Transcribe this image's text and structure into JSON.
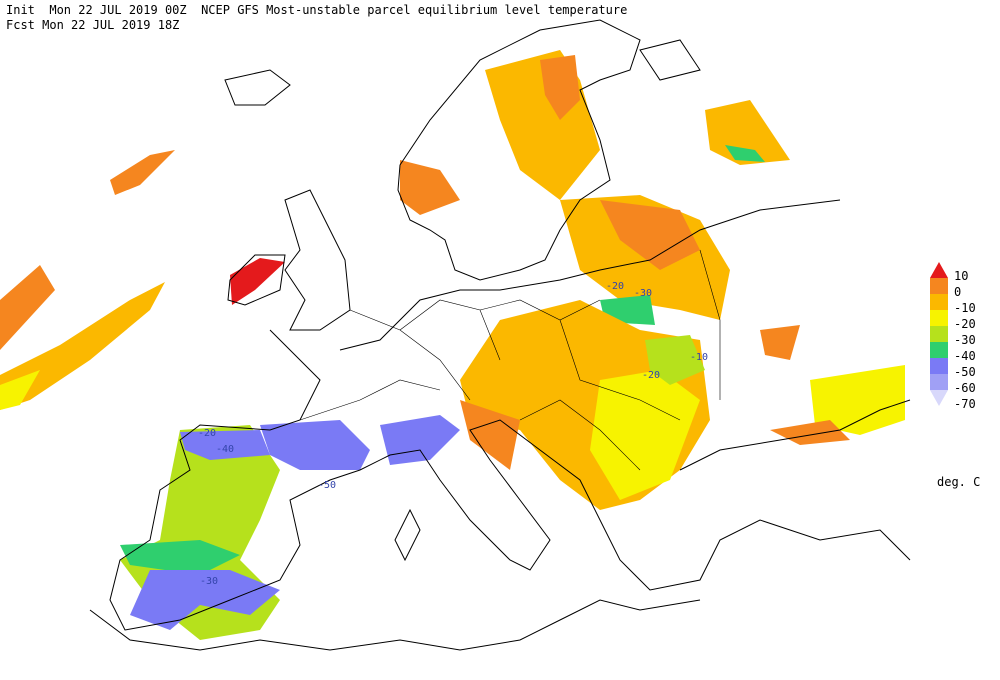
{
  "header": {
    "init_line": "Init  Mon 22 JUL 2019 00Z  NCEP GFS Most-unstable parcel equilibrium level temperature",
    "fcst_line": "Fcst Mon 22 JUL 2019 18Z"
  },
  "legend": {
    "levels": [
      10,
      0,
      -10,
      -20,
      -30,
      -40,
      -50,
      -60,
      -70
    ],
    "colors": [
      "#e41a1c",
      "#f5861f",
      "#fbb800",
      "#f7f300",
      "#b6e11c",
      "#2fcf6e",
      "#7a7af5",
      "#a0a0f5",
      "#d8d8fb"
    ],
    "unit": "deg. C"
  },
  "map": {
    "contour_labels": [
      "-20",
      "-40",
      "-50",
      "-30",
      "-20",
      "-30",
      "-10",
      "-20"
    ]
  }
}
